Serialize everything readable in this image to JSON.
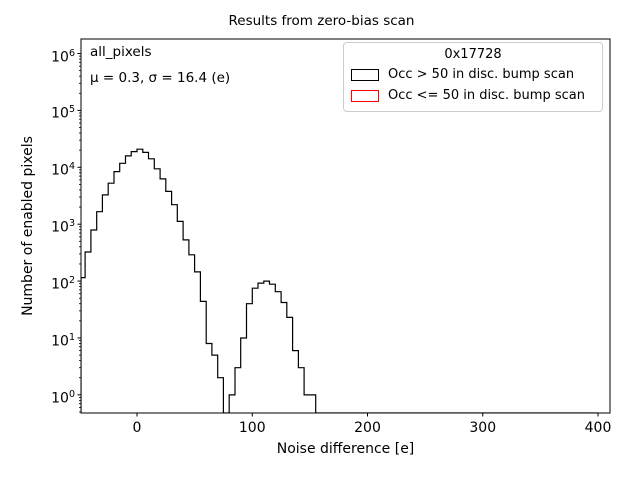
{
  "figure": {
    "title": "Results from zero-bias scan"
  },
  "axes": {
    "xlabel": "Noise difference [e]",
    "ylabel": "Number of enabled pixels",
    "x_ticks": [
      0,
      100,
      200,
      300,
      400
    ],
    "y_tick_exponents": [
      0,
      1,
      2,
      3,
      4,
      5,
      6
    ]
  },
  "annotation": {
    "line1": "all_pixels",
    "line2": "μ = 0.3, σ = 16.4 (e)"
  },
  "legend": {
    "title": "0x17728",
    "entries": [
      {
        "label": "Occ > 50 in disc. bump scan",
        "color": "#000000"
      },
      {
        "label": "Occ <= 50 in disc. bump scan",
        "color": "#ff0000"
      }
    ]
  },
  "colors": {
    "text": "#000000",
    "spine": "#000000",
    "legend_border": "#cccccc",
    "hist_main": "#000000",
    "hist_secondary": "#ff0000"
  },
  "chart_data": {
    "type": "bar",
    "subtype": "step-histogram",
    "title": "Results from zero-bias scan",
    "xlabel": "Noise difference [e]",
    "ylabel": "Number of enabled pixels",
    "x_scale": "linear",
    "y_scale": "log",
    "grid": false,
    "xlim": [
      -48.6,
      410.4
    ],
    "ylim": [
      0.48,
      1800000
    ],
    "x_ticks": [
      0,
      100,
      200,
      300,
      400
    ],
    "y_ticks": [
      1,
      10,
      100,
      1000,
      10000,
      100000,
      1000000
    ],
    "range": [
      -50,
      400
    ],
    "bin_width": 5,
    "bin_start": -50,
    "stats": {
      "mu_e": 0.3,
      "sigma_e": 16.4
    },
    "legend_title": "0x17728",
    "legend_position": "upper right",
    "annotations": [
      "all_pixels",
      "μ = 0.3, σ = 16.4 (e)"
    ],
    "series": [
      {
        "name": "Occ > 50 in disc. bump scan",
        "color": "#000000",
        "counts": [
          115,
          325,
          790,
          1660,
          3270,
          5250,
          8400,
          11750,
          15850,
          18870,
          20800,
          18300,
          14100,
          9400,
          6250,
          3770,
          2200,
          1120,
          530,
          290,
          145,
          44,
          8,
          5,
          2,
          0,
          1,
          3,
          10,
          40,
          75,
          92,
          100,
          88,
          65,
          42,
          23,
          6,
          3,
          1,
          1,
          0
        ]
      },
      {
        "name": "Occ <= 50 in disc. bump scan",
        "color": "#ff0000",
        "counts": []
      }
    ]
  }
}
